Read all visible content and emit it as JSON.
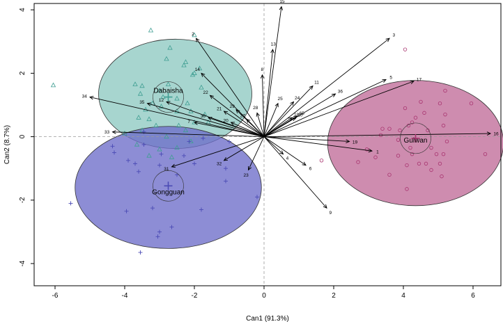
{
  "chart_data": {
    "type": "scatter",
    "title": "",
    "xlabel": "Can1 (91.3%)",
    "ylabel": "Can2 (8.7%)",
    "xlim": [
      -6.6,
      6.8
    ],
    "ylim": [
      -4.7,
      4.2
    ],
    "xticks": [
      -6,
      -4,
      -2,
      0,
      2,
      4,
      6
    ],
    "yticks": [
      -4,
      -2,
      0,
      2,
      4
    ],
    "groups": [
      {
        "name": "Dabaisha",
        "color": "#3f9e92",
        "fill": "#8ec9c1",
        "marker": "triangle",
        "mean": [
          -2.75,
          1.25
        ],
        "ellipse": {
          "cx": -2.55,
          "cy": 1.35,
          "rx": 4.4,
          "ry": 3.45
        },
        "points": [
          [
            -6.05,
            1.62
          ],
          [
            -3.25,
            3.35
          ],
          [
            -2.0,
            3.2
          ],
          [
            -2.7,
            2.8
          ],
          [
            -2.25,
            2.35
          ],
          [
            -2.8,
            2.45
          ],
          [
            -2.0,
            2.0
          ],
          [
            -2.3,
            2.25
          ],
          [
            -1.85,
            2.15
          ],
          [
            -2.05,
            1.95
          ],
          [
            -3.7,
            1.65
          ],
          [
            -3.5,
            1.6
          ],
          [
            -3.55,
            1.35
          ],
          [
            -3.0,
            1.45
          ],
          [
            -2.9,
            1.25
          ],
          [
            -2.75,
            1.65
          ],
          [
            -1.8,
            1.55
          ],
          [
            -2.5,
            1.2
          ],
          [
            -2.2,
            1.05
          ],
          [
            -3.2,
            1.05
          ],
          [
            -2.95,
            0.95
          ],
          [
            -2.5,
            0.8
          ],
          [
            -3.4,
            0.85
          ],
          [
            -3.6,
            0.6
          ],
          [
            -3.3,
            0.55
          ],
          [
            -1.7,
            0.7
          ],
          [
            -2.1,
            0.8
          ],
          [
            -2.0,
            0.45
          ],
          [
            -1.6,
            0.45
          ],
          [
            -2.45,
            0.35
          ],
          [
            -3.1,
            0.35
          ],
          [
            -3.5,
            0.2
          ],
          [
            -4.0,
            0.1
          ],
          [
            -2.8,
            0.0
          ],
          [
            -2.25,
            0.2
          ],
          [
            -2.1,
            -0.15
          ],
          [
            -3.65,
            -0.25
          ],
          [
            -3.0,
            -0.4
          ],
          [
            -2.5,
            -0.35
          ],
          [
            -3.3,
            -0.6
          ],
          [
            -2.65,
            -0.65
          ]
        ]
      },
      {
        "name": "Gongguan",
        "color": "#4b4bb5",
        "fill": "#6d6dc9",
        "marker": "plus",
        "mean": [
          -2.75,
          -1.55
        ],
        "ellipse": {
          "cx": -2.75,
          "cy": -1.6,
          "rx": 5.35,
          "ry": 3.85
        },
        "points": [
          [
            -5.55,
            -2.1
          ],
          [
            -3.95,
            -2.35
          ],
          [
            -3.2,
            -2.25
          ],
          [
            -1.8,
            -2.3
          ],
          [
            -3.0,
            -3.0
          ],
          [
            -2.65,
            -2.85
          ],
          [
            -3.05,
            -3.15
          ],
          [
            -3.55,
            -3.65
          ],
          [
            -0.2,
            -1.9
          ],
          [
            -1.1,
            -1.0
          ],
          [
            -2.0,
            -0.85
          ],
          [
            -3.0,
            -0.9
          ],
          [
            -2.3,
            -0.6
          ],
          [
            -3.7,
            -0.85
          ],
          [
            -4.3,
            -0.5
          ],
          [
            -3.6,
            -1.1
          ],
          [
            -2.5,
            -1.2
          ],
          [
            -1.1,
            -1.4
          ],
          [
            -3.45,
            -0.25
          ],
          [
            -2.15,
            -0.15
          ],
          [
            -2.95,
            -0.55
          ],
          [
            -4.35,
            -0.3
          ],
          [
            -3.45,
            0.15
          ],
          [
            -1.75,
            -0.05
          ],
          [
            -1.0,
            -0.15
          ],
          [
            -3.9,
            -0.75
          ]
        ]
      },
      {
        "name": "Guiwan",
        "color": "#a8336f",
        "fill": "#c06c98",
        "marker": "circle",
        "mean": [
          4.35,
          -0.05
        ],
        "ellipse": {
          "cx": 4.35,
          "cy": -0.2,
          "rx": 5.05,
          "ry": 3.95
        },
        "points": [
          [
            4.05,
            2.75
          ],
          [
            1.65,
            -0.75
          ],
          [
            2.7,
            -0.8
          ],
          [
            2.95,
            -0.4
          ],
          [
            3.35,
            0.05
          ],
          [
            3.4,
            0.25
          ],
          [
            3.6,
            0.25
          ],
          [
            3.9,
            0.2
          ],
          [
            4.05,
            0.9
          ],
          [
            4.15,
            0.35
          ],
          [
            4.25,
            0.45
          ],
          [
            4.35,
            0.6
          ],
          [
            4.5,
            1.1
          ],
          [
            4.6,
            0.75
          ],
          [
            4.7,
            0.2
          ],
          [
            4.8,
            -0.35
          ],
          [
            4.95,
            -0.55
          ],
          [
            5.05,
            -0.85
          ],
          [
            5.15,
            0.35
          ],
          [
            5.15,
            -0.55
          ],
          [
            5.25,
            -0.15
          ],
          [
            5.2,
            0.7
          ],
          [
            5.05,
            1.05
          ],
          [
            5.2,
            1.45
          ],
          [
            5.95,
            1.05
          ],
          [
            6.35,
            -0.55
          ],
          [
            3.85,
            -0.6
          ],
          [
            4.1,
            -0.9
          ],
          [
            4.25,
            -0.55
          ],
          [
            4.45,
            -0.85
          ],
          [
            4.65,
            -0.85
          ],
          [
            4.8,
            -1.05
          ],
          [
            5.1,
            -1.25
          ],
          [
            3.6,
            -1.2
          ],
          [
            3.2,
            -0.65
          ],
          [
            4.1,
            -1.65
          ],
          [
            3.85,
            -0.1
          ],
          [
            4.2,
            -0.35
          ]
        ]
      }
    ],
    "vectors": [
      {
        "id": "1",
        "x": 3.1,
        "y": -0.45
      },
      {
        "id": "2",
        "x": -1.95,
        "y": 3.1
      },
      {
        "id": "3",
        "x": 3.6,
        "y": 3.1
      },
      {
        "id": "4",
        "x": 0.55,
        "y": -0.55
      },
      {
        "id": "5",
        "x": 3.5,
        "y": 1.8
      },
      {
        "id": "6",
        "x": 1.2,
        "y": -0.9
      },
      {
        "id": "7",
        "x": -2.0,
        "y": 0.45
      },
      {
        "id": "8",
        "x": -0.05,
        "y": 1.95
      },
      {
        "id": "9",
        "x": 1.8,
        "y": -2.25
      },
      {
        "id": "10",
        "x": 0.9,
        "y": 0.6
      },
      {
        "id": "11",
        "x": 1.4,
        "y": 1.6
      },
      {
        "id": "12",
        "x": -2.8,
        "y": 1.1
      },
      {
        "id": "13",
        "x": 0.25,
        "y": 2.75
      },
      {
        "id": "14",
        "x": -1.8,
        "y": 2.0
      },
      {
        "id": "15",
        "x": 0.5,
        "y": 4.1
      },
      {
        "id": "16",
        "x": 6.5,
        "y": 0.1
      },
      {
        "id": "17",
        "x": 4.3,
        "y": 1.75
      },
      {
        "id": "18",
        "x": 0.8,
        "y": 0.6
      },
      {
        "id": "19",
        "x": 2.45,
        "y": -0.15
      },
      {
        "id": "20",
        "x": -0.95,
        "y": 0.45
      },
      {
        "id": "21",
        "x": -1.15,
        "y": 0.8
      },
      {
        "id": "22",
        "x": -1.55,
        "y": 1.3
      },
      {
        "id": "23",
        "x": -0.45,
        "y": -1.05
      },
      {
        "id": "24",
        "x": 0.85,
        "y": 1.1
      },
      {
        "id": "25",
        "x": 0.4,
        "y": 1.05
      },
      {
        "id": "27",
        "x": -0.5,
        "y": 0.55
      },
      {
        "id": "28",
        "x": -0.2,
        "y": 0.75
      },
      {
        "id": "29",
        "x": -0.8,
        "y": 0.85
      },
      {
        "id": "30",
        "x": -1.6,
        "y": 0.6
      },
      {
        "id": "31",
        "x": -2.65,
        "y": -0.95
      },
      {
        "id": "32",
        "x": -1.15,
        "y": -0.75
      },
      {
        "id": "33",
        "x": -4.35,
        "y": 0.15
      },
      {
        "id": "34",
        "x": -5.0,
        "y": 1.25
      },
      {
        "id": "35",
        "x": -3.35,
        "y": 1.05
      },
      {
        "id": "36",
        "x": 2.05,
        "y": 1.35
      },
      {
        "id": "65",
        "x": 0.95,
        "y": 0.65
      }
    ]
  }
}
